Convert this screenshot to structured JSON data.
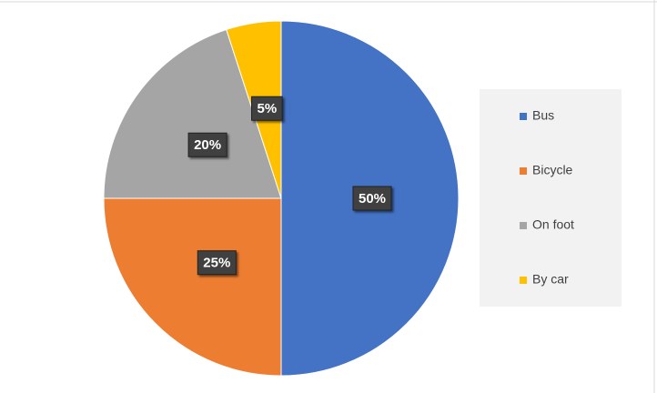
{
  "chart_data": {
    "type": "pie",
    "categories": [
      "Bus",
      "Bicycle",
      "On foot",
      "By car"
    ],
    "values": [
      50,
      25,
      20,
      5
    ],
    "value_labels": [
      "50%",
      "25%",
      "20%",
      "5%"
    ],
    "colors": [
      "#4472c4",
      "#ed7d31",
      "#a5a5a5",
      "#ffc000"
    ],
    "legend": "right"
  }
}
